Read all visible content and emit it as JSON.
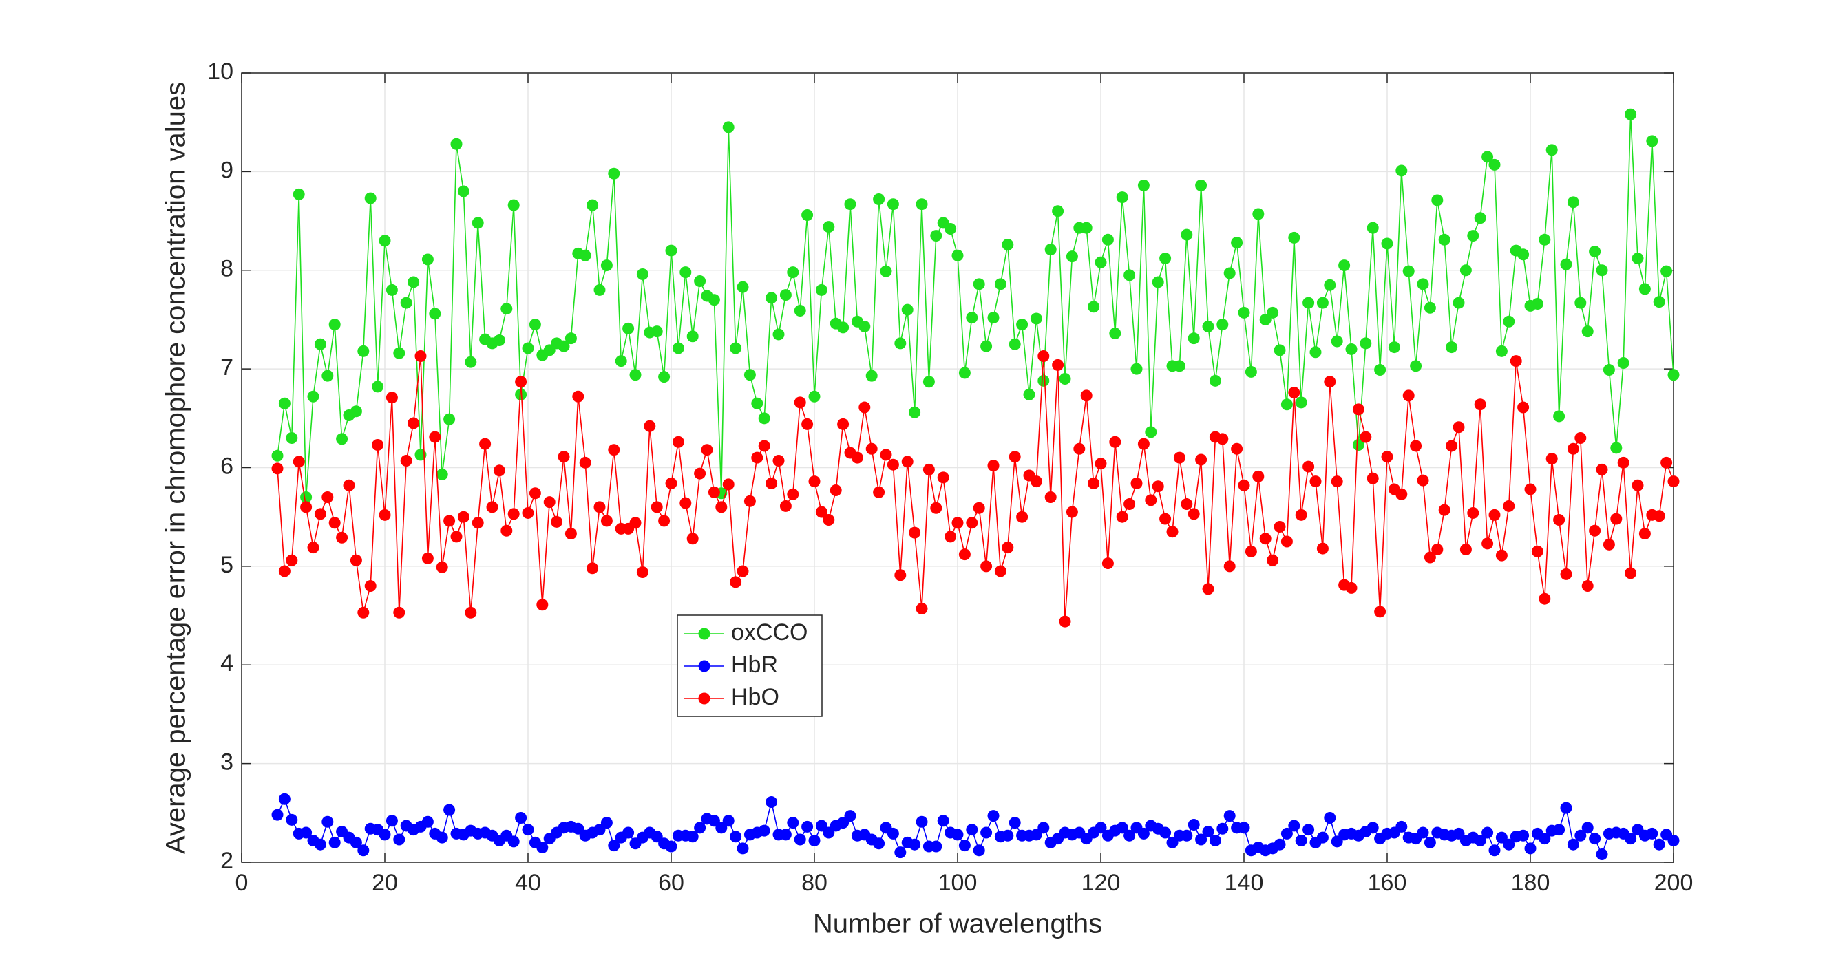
{
  "chart_data": {
    "type": "line",
    "xlabel": "Number of wavelengths",
    "ylabel": "Average percentage error in chromophore concentration values",
    "x": [
      5,
      6,
      7,
      8,
      9,
      10,
      11,
      12,
      13,
      14,
      15,
      16,
      17,
      18,
      19,
      20,
      21,
      22,
      23,
      24,
      25,
      26,
      27,
      28,
      29,
      30,
      31,
      32,
      33,
      34,
      35,
      36,
      37,
      38,
      39,
      40,
      41,
      42,
      43,
      44,
      45,
      46,
      47,
      48,
      49,
      50,
      51,
      52,
      53,
      54,
      55,
      56,
      57,
      58,
      59,
      60,
      61,
      62,
      63,
      64,
      65,
      66,
      67,
      68,
      69,
      70,
      71,
      72,
      73,
      74,
      75,
      76,
      77,
      78,
      79,
      80,
      81,
      82,
      83,
      84,
      85,
      86,
      87,
      88,
      89,
      90,
      91,
      92,
      93,
      94,
      95,
      96,
      97,
      98,
      99,
      100,
      101,
      102,
      103,
      104,
      105,
      106,
      107,
      108,
      109,
      110,
      111,
      112,
      113,
      114,
      115,
      116,
      117,
      118,
      119,
      120,
      121,
      122,
      123,
      124,
      125,
      126,
      127,
      128,
      129,
      130,
      131,
      132,
      133,
      134,
      135,
      136,
      137,
      138,
      139,
      140,
      141,
      142,
      143,
      144,
      145,
      146,
      147,
      148,
      149,
      150,
      151,
      152,
      153,
      154,
      155,
      156,
      157,
      158,
      159,
      160,
      161,
      162,
      163,
      164,
      165,
      166,
      167,
      168,
      169,
      170,
      171,
      172,
      173,
      174,
      175,
      176,
      177,
      178,
      179,
      180,
      181,
      182,
      183,
      184,
      185,
      186,
      187,
      188,
      189,
      190,
      191,
      192,
      193,
      194,
      195,
      196,
      197,
      198,
      199,
      200
    ],
    "series": [
      {
        "name": "oxCCO",
        "color": "#1fe01f",
        "values": [
          6.12,
          6.65,
          6.3,
          8.77,
          5.7,
          6.72,
          7.25,
          6.93,
          7.45,
          6.29,
          6.53,
          6.57,
          7.18,
          8.73,
          6.82,
          8.3,
          7.8,
          7.16,
          7.67,
          7.88,
          6.13,
          8.11,
          7.56,
          5.93,
          6.49,
          9.28,
          8.8,
          7.07,
          8.48,
          7.3,
          7.26,
          7.29,
          7.61,
          8.66,
          6.74,
          7.21,
          7.45,
          7.14,
          7.19,
          7.26,
          7.23,
          7.31,
          8.17,
          8.15,
          8.66,
          7.8,
          8.05,
          8.98,
          7.08,
          7.41,
          6.94,
          7.96,
          7.37,
          7.38,
          6.92,
          8.2,
          7.21,
          7.98,
          7.33,
          7.89,
          7.74,
          7.7,
          5.74,
          9.45,
          7.21,
          7.83,
          6.94,
          6.65,
          6.5,
          7.72,
          7.35,
          7.75,
          7.98,
          7.59,
          8.56,
          6.72,
          7.8,
          8.44,
          7.46,
          7.42,
          8.67,
          7.48,
          7.43,
          6.93,
          8.72,
          7.99,
          8.67,
          7.26,
          7.6,
          6.56,
          8.67,
          6.87,
          8.35,
          8.48,
          8.42,
          8.15,
          6.96,
          7.52,
          7.86,
          7.23,
          7.52,
          7.86,
          8.26,
          7.25,
          7.45,
          6.74,
          7.51,
          6.88,
          8.21,
          8.6,
          6.9,
          8.14,
          8.43,
          8.43,
          7.63,
          8.08,
          8.31,
          7.36,
          8.74,
          7.95,
          7.0,
          8.86,
          6.36,
          7.88,
          8.12,
          7.03,
          7.03,
          8.36,
          7.31,
          8.86,
          7.43,
          6.88,
          7.45,
          7.97,
          8.28,
          7.57,
          6.97,
          8.57,
          7.5,
          7.57,
          7.19,
          6.64,
          8.33,
          6.66,
          7.67,
          7.17,
          7.67,
          7.85,
          7.28,
          8.05,
          7.2,
          6.23,
          7.26,
          8.43,
          6.99,
          8.27,
          7.22,
          9.01,
          7.99,
          7.03,
          7.86,
          7.62,
          8.71,
          8.31,
          7.22,
          7.67,
          8.0,
          8.35,
          8.53,
          9.15,
          9.07,
          7.18,
          7.48,
          8.2,
          8.16,
          7.64,
          7.66,
          8.31,
          9.22,
          6.52,
          8.06,
          8.69,
          7.67,
          7.38,
          8.19,
          8.0,
          6.99,
          6.2,
          7.06,
          9.58,
          8.12,
          7.81,
          9.31,
          7.68,
          7.99,
          6.94
        ]
      },
      {
        "name": "HbR",
        "color": "#0000ff",
        "values": [
          2.48,
          2.64,
          2.43,
          2.29,
          2.3,
          2.22,
          2.18,
          2.41,
          2.2,
          2.31,
          2.25,
          2.2,
          2.12,
          2.34,
          2.33,
          2.28,
          2.42,
          2.23,
          2.37,
          2.33,
          2.36,
          2.41,
          2.29,
          2.25,
          2.53,
          2.29,
          2.28,
          2.32,
          2.29,
          2.3,
          2.27,
          2.22,
          2.27,
          2.21,
          2.45,
          2.33,
          2.2,
          2.15,
          2.24,
          2.3,
          2.35,
          2.36,
          2.34,
          2.27,
          2.3,
          2.33,
          2.4,
          2.17,
          2.25,
          2.3,
          2.19,
          2.25,
          2.3,
          2.26,
          2.19,
          2.16,
          2.27,
          2.27,
          2.26,
          2.35,
          2.44,
          2.42,
          2.35,
          2.42,
          2.26,
          2.14,
          2.28,
          2.3,
          2.32,
          2.61,
          2.28,
          2.28,
          2.4,
          2.23,
          2.36,
          2.22,
          2.37,
          2.3,
          2.37,
          2.4,
          2.47,
          2.27,
          2.28,
          2.23,
          2.19,
          2.35,
          2.29,
          2.1,
          2.2,
          2.18,
          2.41,
          2.16,
          2.16,
          2.42,
          2.3,
          2.28,
          2.17,
          2.33,
          2.12,
          2.3,
          2.47,
          2.26,
          2.27,
          2.4,
          2.27,
          2.27,
          2.28,
          2.35,
          2.2,
          2.24,
          2.3,
          2.28,
          2.3,
          2.24,
          2.3,
          2.35,
          2.27,
          2.32,
          2.35,
          2.27,
          2.35,
          2.29,
          2.37,
          2.34,
          2.3,
          2.2,
          2.27,
          2.27,
          2.38,
          2.23,
          2.31,
          2.22,
          2.34,
          2.47,
          2.35,
          2.35,
          2.12,
          2.15,
          2.12,
          2.14,
          2.18,
          2.29,
          2.37,
          2.22,
          2.33,
          2.2,
          2.25,
          2.45,
          2.21,
          2.28,
          2.29,
          2.27,
          2.31,
          2.35,
          2.24,
          2.29,
          2.3,
          2.36,
          2.25,
          2.24,
          2.3,
          2.2,
          2.3,
          2.28,
          2.27,
          2.29,
          2.22,
          2.25,
          2.22,
          2.3,
          2.12,
          2.25,
          2.18,
          2.26,
          2.27,
          2.14,
          2.29,
          2.24,
          2.32,
          2.33,
          2.55,
          2.18,
          2.27,
          2.35,
          2.24,
          2.08,
          2.29,
          2.3,
          2.29,
          2.24,
          2.33,
          2.27,
          2.29,
          2.18,
          2.28,
          2.22
        ]
      },
      {
        "name": "HbO",
        "color": "#ff0000",
        "values": [
          5.99,
          4.95,
          5.06,
          6.06,
          5.6,
          5.19,
          5.53,
          5.7,
          5.44,
          5.29,
          5.82,
          5.06,
          4.53,
          4.8,
          6.23,
          5.52,
          6.71,
          4.53,
          6.07,
          6.45,
          7.13,
          5.08,
          6.31,
          4.99,
          5.46,
          5.3,
          5.5,
          4.53,
          5.44,
          6.24,
          5.6,
          5.97,
          5.36,
          5.53,
          6.87,
          5.54,
          5.74,
          4.61,
          5.65,
          5.45,
          6.11,
          5.33,
          6.72,
          6.05,
          4.98,
          5.6,
          5.46,
          6.18,
          5.38,
          5.38,
          5.44,
          4.94,
          6.42,
          5.6,
          5.46,
          5.84,
          6.26,
          5.64,
          5.28,
          5.94,
          6.18,
          5.75,
          5.6,
          5.83,
          4.84,
          4.95,
          5.66,
          6.1,
          6.22,
          5.84,
          6.07,
          5.61,
          5.73,
          6.66,
          6.44,
          5.86,
          5.55,
          5.47,
          5.77,
          6.44,
          6.15,
          6.1,
          6.61,
          6.19,
          5.75,
          6.13,
          6.03,
          4.91,
          6.06,
          5.34,
          4.57,
          5.98,
          5.59,
          5.9,
          5.3,
          5.44,
          5.12,
          5.44,
          5.59,
          5.0,
          6.02,
          4.95,
          5.19,
          6.11,
          5.5,
          5.92,
          5.86,
          7.13,
          5.7,
          7.04,
          4.44,
          5.55,
          6.19,
          6.73,
          5.84,
          6.04,
          5.03,
          6.26,
          5.5,
          5.63,
          5.84,
          6.24,
          5.67,
          5.81,
          5.48,
          5.35,
          6.1,
          5.63,
          5.53,
          6.08,
          4.77,
          6.31,
          6.29,
          5.0,
          6.19,
          5.82,
          5.15,
          5.91,
          5.28,
          5.06,
          5.4,
          5.25,
          6.76,
          5.52,
          6.01,
          5.86,
          5.18,
          6.87,
          5.86,
          4.81,
          4.78,
          6.59,
          6.31,
          5.89,
          4.54,
          6.11,
          5.78,
          5.73,
          6.73,
          6.22,
          5.87,
          5.09,
          5.17,
          5.57,
          6.22,
          6.41,
          5.17,
          5.54,
          6.64,
          5.23,
          5.52,
          5.11,
          5.61,
          7.08,
          6.61,
          5.78,
          5.15,
          4.67,
          6.09,
          5.47,
          4.92,
          6.19,
          6.3,
          4.8,
          5.36,
          5.98,
          5.22,
          5.48,
          6.05,
          4.93,
          5.82,
          5.33,
          5.52,
          5.51,
          6.05,
          5.86
        ]
      }
    ],
    "xlim": [
      0,
      200
    ],
    "xticks": [
      0,
      20,
      40,
      60,
      80,
      100,
      120,
      140,
      160,
      180,
      200
    ],
    "ylim": [
      2,
      10
    ],
    "yticks": [
      2,
      3,
      4,
      5,
      6,
      7,
      8,
      9,
      10
    ],
    "grid": true,
    "legend": "center"
  }
}
